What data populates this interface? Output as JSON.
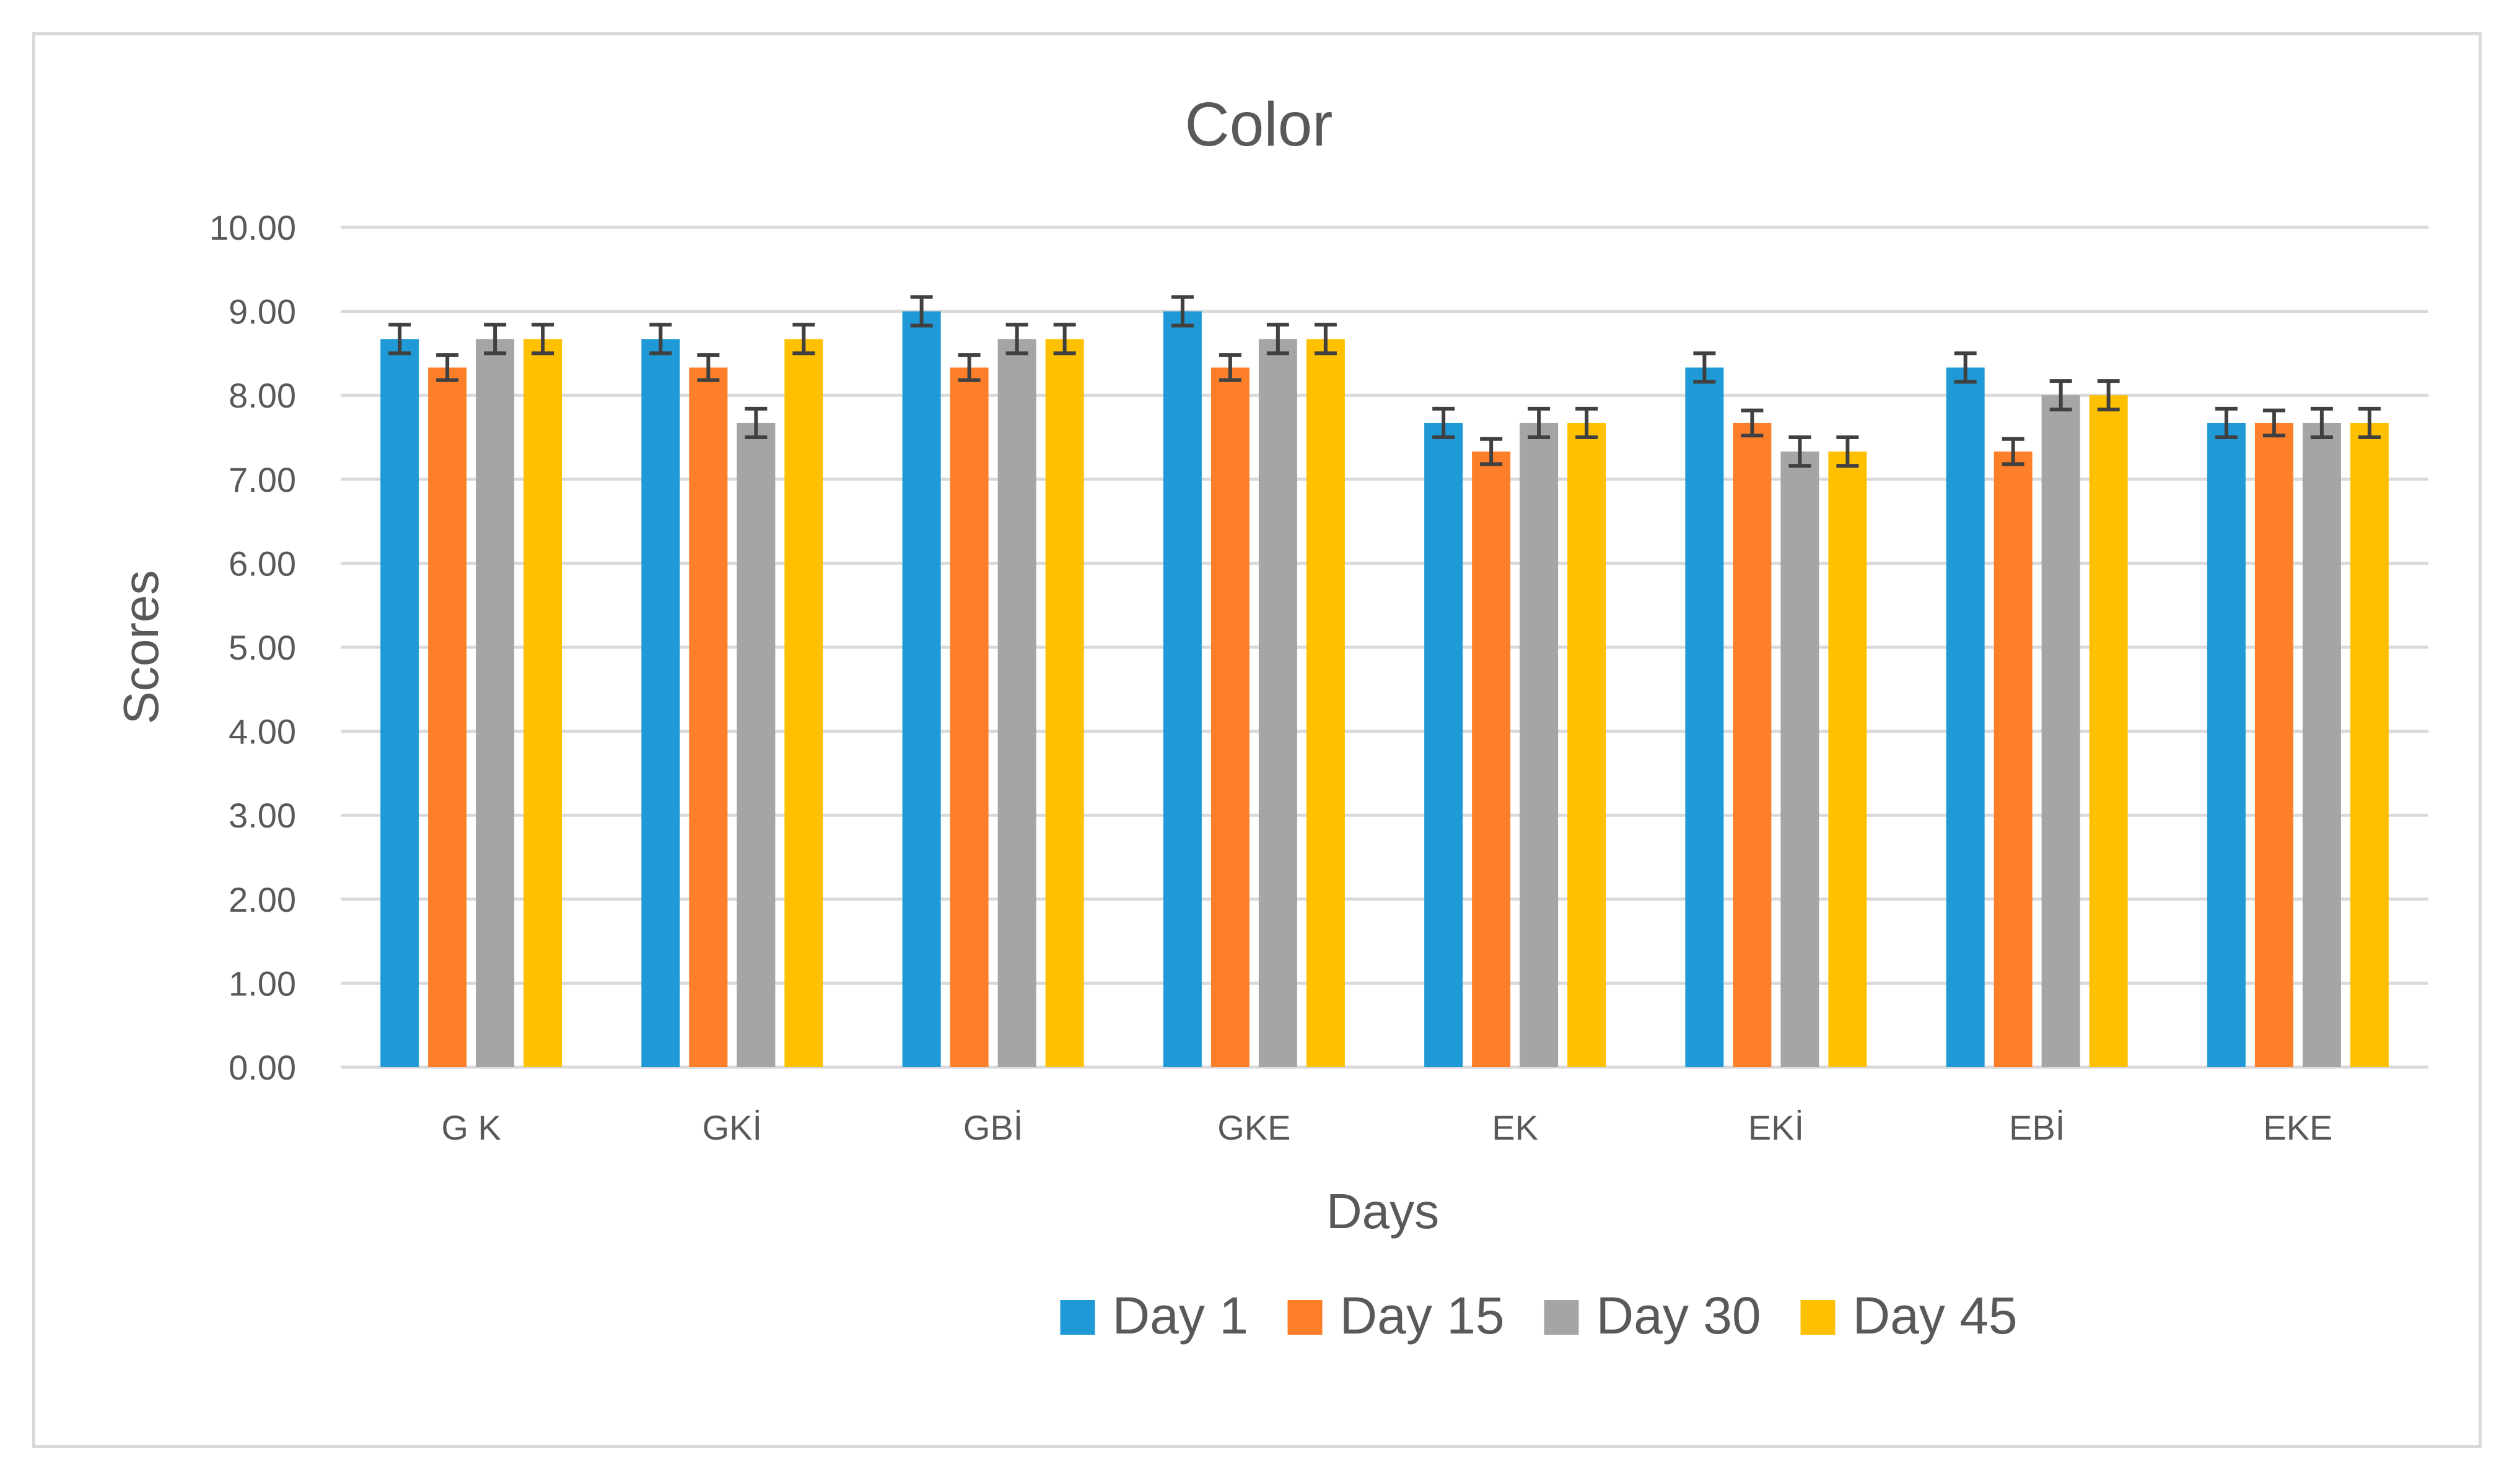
{
  "chart_data": {
    "type": "bar",
    "title": "Color",
    "xlabel": "Days",
    "ylabel": "Scores",
    "ylim": [
      0,
      10
    ],
    "y_ticks": [
      "0.00",
      "1.00",
      "2.00",
      "3.00",
      "4.00",
      "5.00",
      "6.00",
      "7.00",
      "8.00",
      "9.00",
      "10.00"
    ],
    "categories": [
      "G K",
      "GKİ",
      "GBİ",
      "GKE",
      "EK",
      "EKİ",
      "EBİ",
      "EKE"
    ],
    "grid": true,
    "legend_position": "bottom",
    "error_bars": true,
    "series": [
      {
        "name": "Day 1",
        "color": "#1f9ad6",
        "values": [
          8.67,
          8.67,
          9.0,
          9.0,
          7.67,
          8.33,
          8.33,
          7.67
        ],
        "errors": [
          0.17,
          0.17,
          0.17,
          0.17,
          0.17,
          0.17,
          0.17,
          0.17
        ]
      },
      {
        "name": "Day 15",
        "color": "#fe7f2a",
        "values": [
          8.33,
          8.33,
          8.33,
          8.33,
          7.33,
          7.67,
          7.33,
          7.67
        ],
        "errors": [
          0.15,
          0.15,
          0.15,
          0.15,
          0.15,
          0.15,
          0.15,
          0.15
        ]
      },
      {
        "name": "Day 30",
        "color": "#a5a5a5",
        "values": [
          8.67,
          7.67,
          8.67,
          8.67,
          7.67,
          7.33,
          8.0,
          7.67
        ],
        "errors": [
          0.17,
          0.17,
          0.17,
          0.17,
          0.17,
          0.17,
          0.17,
          0.17
        ]
      },
      {
        "name": "Day 45",
        "color": "#ffc000",
        "values": [
          8.67,
          8.67,
          8.67,
          8.67,
          7.67,
          7.33,
          8.0,
          7.67
        ],
        "errors": [
          0.17,
          0.17,
          0.17,
          0.17,
          0.17,
          0.17,
          0.17,
          0.17
        ]
      }
    ],
    "colors": {
      "gridline": "#d9d9d9",
      "text": "#595959",
      "error_bar": "#404040",
      "frame": "#d9d9d9"
    }
  }
}
